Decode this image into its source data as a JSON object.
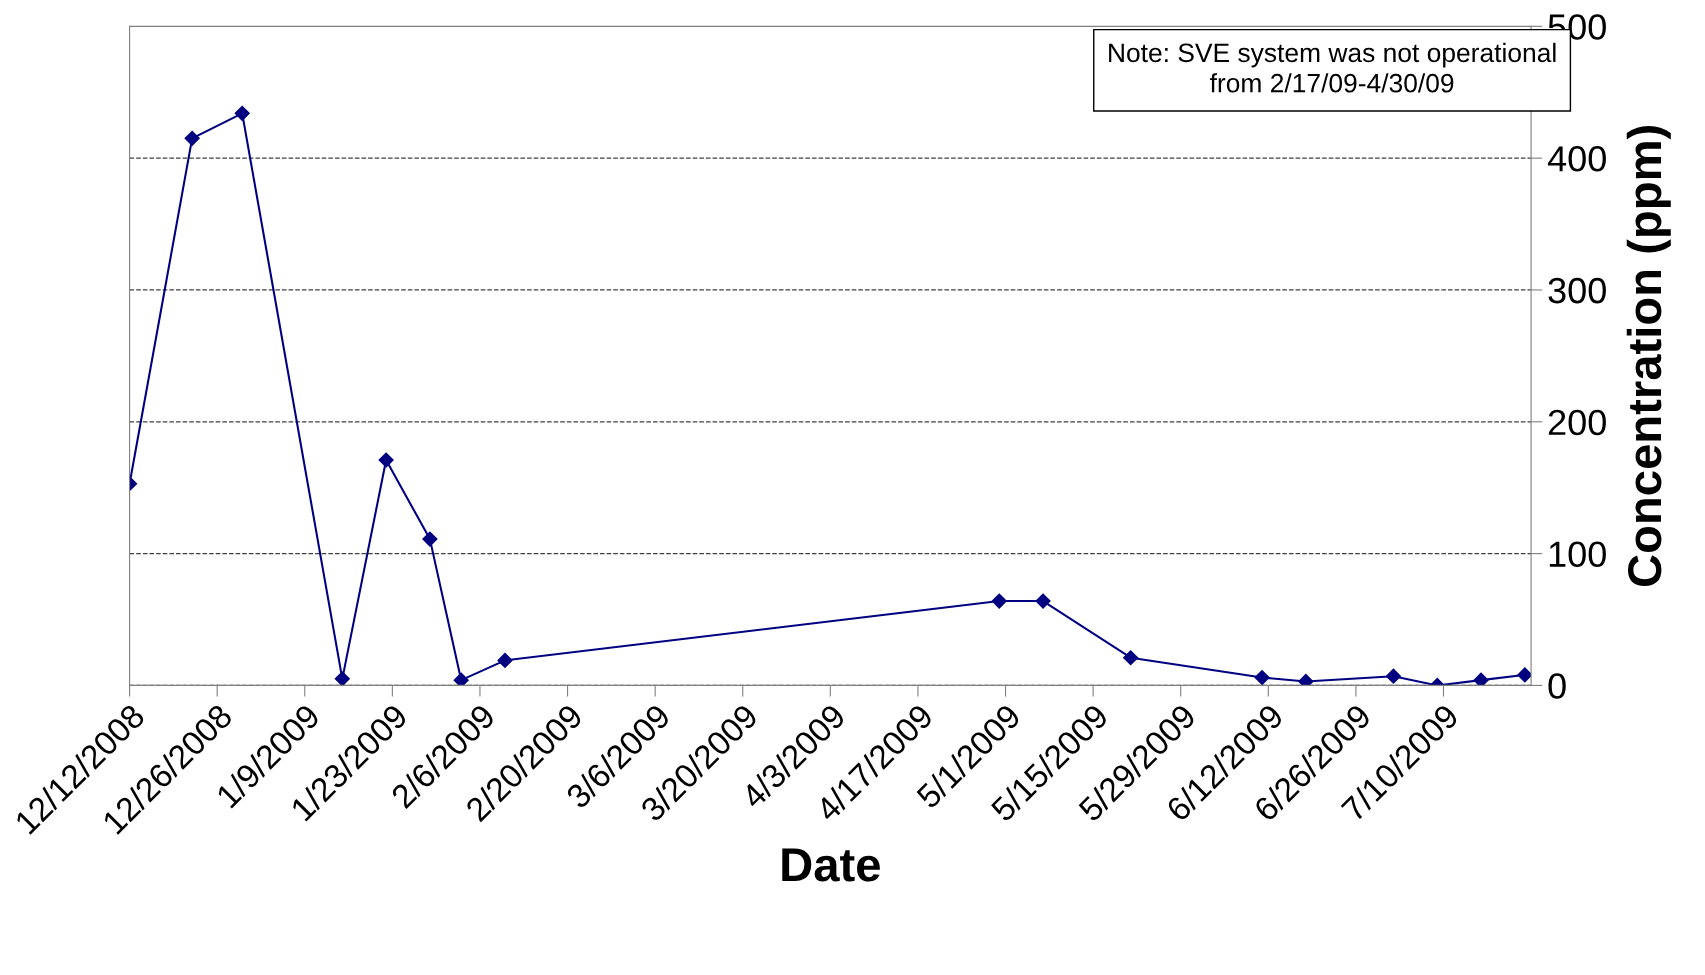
{
  "chart_data": {
    "type": "line",
    "xlabel": "Date",
    "ylabel": "Concentration (ppm)",
    "x": [
      "2008-12-12",
      "2008-12-22",
      "2008-12-30",
      "2009-01-15",
      "2009-01-22",
      "2009-01-29",
      "2009-02-03",
      "2009-02-10",
      "2009-04-30",
      "2009-05-07",
      "2009-05-21",
      "2009-06-11",
      "2009-06-18",
      "2009-07-02",
      "2009-07-09",
      "2009-07-16",
      "2009-07-23"
    ],
    "series": [
      {
        "color": "#000080",
        "values": [
          153,
          415,
          434,
          5,
          171,
          111,
          4,
          19,
          64,
          64,
          21,
          6,
          3,
          7,
          0,
          4,
          8
        ]
      }
    ],
    "xlim": [
      "2008-12-12",
      "2009-07-24"
    ],
    "xticks": [
      {
        "value": "2008-12-12",
        "label": "12/12/2008"
      },
      {
        "value": "2008-12-26",
        "label": "12/26/2008"
      },
      {
        "value": "2009-01-09",
        "label": "1/9/2009"
      },
      {
        "value": "2009-01-23",
        "label": "1/23/2009"
      },
      {
        "value": "2009-02-06",
        "label": "2/6/2009"
      },
      {
        "value": "2009-02-20",
        "label": "2/20/2009"
      },
      {
        "value": "2009-03-06",
        "label": "3/6/2009"
      },
      {
        "value": "2009-03-20",
        "label": "3/20/2009"
      },
      {
        "value": "2009-04-03",
        "label": "4/3/2009"
      },
      {
        "value": "2009-04-17",
        "label": "4/17/2009"
      },
      {
        "value": "2009-05-01",
        "label": "5/1/2009"
      },
      {
        "value": "2009-05-15",
        "label": "5/15/2009"
      },
      {
        "value": "2009-05-29",
        "label": "5/29/2009"
      },
      {
        "value": "2009-06-12",
        "label": "6/12/2009"
      },
      {
        "value": "2009-06-26",
        "label": "6/26/2009"
      },
      {
        "value": "2009-07-10",
        "label": "7/10/2009"
      }
    ],
    "ylim": [
      0,
      500
    ],
    "yticks": [
      0,
      100,
      200,
      300,
      400,
      500
    ],
    "grid": "y",
    "marker": "diamond",
    "line_style": "solid",
    "annotations": [
      "Note: SVE system was not operational from 2/17/09-4/30/09"
    ]
  }
}
